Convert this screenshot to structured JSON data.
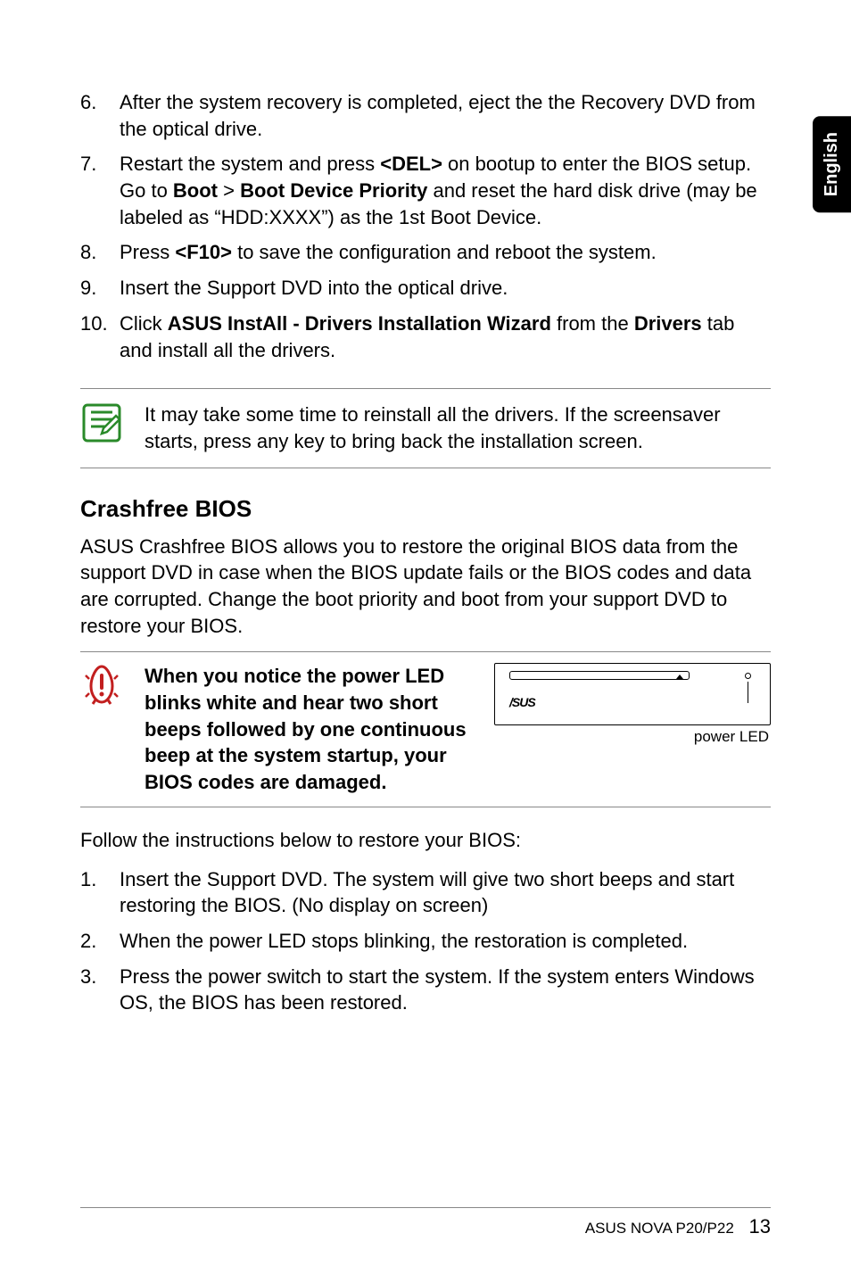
{
  "side_tab": "English",
  "steps_a": [
    {
      "n": "6.",
      "html": "After the system recovery is completed, eject the the Recovery DVD from the optical drive."
    },
    {
      "n": "7.",
      "html": "Restart the system and press <b>&lt;DEL&gt;</b> on bootup to enter the BIOS setup. Go to <b>Boot</b> &gt; <b>Boot Device Priority</b> and reset the hard disk drive (may be labeled as “HDD:XXXX”) as the 1st Boot Device."
    },
    {
      "n": "8.",
      "html": "Press <b>&lt;F10&gt;</b> to save the configuration and reboot the system."
    },
    {
      "n": "9.",
      "html": "Insert the Support DVD into the optical drive."
    },
    {
      "n": "10.",
      "html": "Click <b>ASUS InstAll - Drivers Installation Wizard</b> from the <b>Drivers</b> tab and install all the drivers."
    }
  ],
  "note_text": "It may take some time to reinstall all the drivers. If the screensaver starts, press any key to bring back the installation screen.",
  "section_title": "Crashfree BIOS",
  "section_para": "ASUS Crashfree BIOS allows you to restore the original BIOS data from the support DVD in case when the BIOS update fails or the BIOS codes and data are corrupted. Change the boot priority and boot from your support DVD to restore your BIOS.",
  "warn_html": "<b>When you notice the power LED blinks white and hear two short beeps followed by one continuous beep at the system startup, your BIOS codes are damaged.</b>",
  "device_logo": "/SUS",
  "power_led_label": "power LED",
  "follow_text": "Follow the instructions below to restore your BIOS:",
  "steps_b": [
    {
      "n": "1.",
      "html": "Insert the Support DVD. The system will give two short beeps and start restoring the BIOS. (No display on screen)"
    },
    {
      "n": "2.",
      "html": "When the power LED stops blinking, the restoration is completed."
    },
    {
      "n": "3.",
      "html": "Press the power switch to start the system. If the system enters Windows OS, the BIOS has been restored."
    }
  ],
  "footer_model": "ASUS NOVA P20/P22",
  "footer_page": "13",
  "icons": {
    "note_stroke": "#2a8a2a",
    "warn_stroke": "#c21f1f"
  }
}
